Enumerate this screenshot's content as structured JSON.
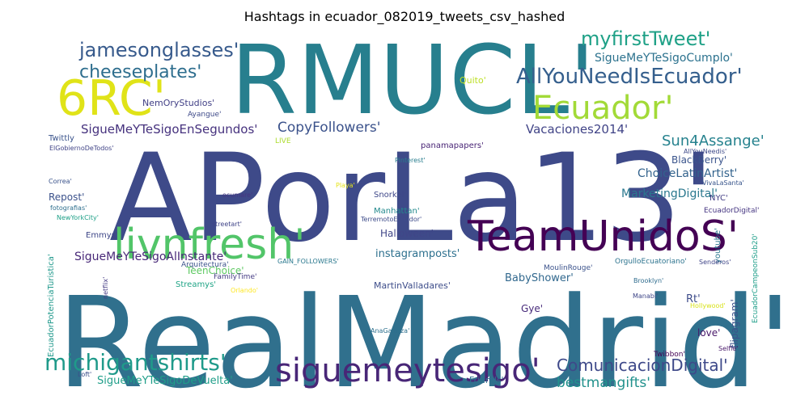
{
  "chart_data": {
    "type": "wordcloud",
    "title": "Hashtags in ecuador_082019_tweets_csv_hashed",
    "palette": "viridis",
    "background": "#ffffff",
    "words": [
      {
        "text": "RealMadrid'",
        "weight": 100,
        "color": "#30708d"
      },
      {
        "text": "APorLa13'",
        "weight": 97,
        "color": "#3e4a89"
      },
      {
        "text": "RMUCL'",
        "weight": 82,
        "color": "#277f8e"
      },
      {
        "text": "TeamUnidoS'",
        "weight": 44,
        "color": "#440154"
      },
      {
        "text": "livnfresh'",
        "weight": 40,
        "color": "#52c569"
      },
      {
        "text": "6RC'",
        "weight": 42,
        "color": "#e0e318"
      },
      {
        "text": "siguemeytesigo'",
        "weight": 30,
        "color": "#482677"
      },
      {
        "text": "Ecuador'",
        "weight": 30,
        "color": "#a2da37"
      },
      {
        "text": "AllYouNeedIsEcuador'",
        "weight": 23,
        "color": "#355f8d"
      },
      {
        "text": "michigantshirts'",
        "weight": 21,
        "color": "#1f9a8a"
      },
      {
        "text": "jamesonglasses'",
        "weight": 20,
        "color": "#375a8c"
      },
      {
        "text": "myfirstTweet'",
        "weight": 20,
        "color": "#1fa187"
      },
      {
        "text": "ComunicacionDigital'",
        "weight": 16,
        "color": "#3e4989"
      },
      {
        "text": "cheeseplates'",
        "weight": 16,
        "color": "#2e6e8e"
      },
      {
        "text": "CopyFollowers'",
        "weight": 14,
        "color": "#3b528b"
      },
      {
        "text": "Sun4Assange'",
        "weight": 14,
        "color": "#26828e"
      },
      {
        "text": "Vacaciones2014'",
        "weight": 13,
        "color": "#414487"
      },
      {
        "text": "SigueMeYTeSigoEnSegundos'",
        "weight": 13,
        "color": "#46327e"
      },
      {
        "text": "SigueMeYTeSigoCumplo'",
        "weight": 12,
        "color": "#2c728e"
      },
      {
        "text": "bestmangifts'",
        "weight": 12,
        "color": "#21918c"
      },
      {
        "text": "SigueMeYTeSigoAlInstante'",
        "weight": 11,
        "color": "#482878"
      },
      {
        "text": "ChoiceLatinArtist'",
        "weight": 11,
        "color": "#33638d"
      },
      {
        "text": "MarketingDigital'",
        "weight": 11,
        "color": "#2a788e"
      },
      {
        "text": "SigueMeYTeSigoDeVuelta'",
        "weight": 10,
        "color": "#1f9e89"
      },
      {
        "text": "instagramposts'",
        "weight": 10,
        "color": "#2d708e"
      },
      {
        "text": "BlackBerry'",
        "weight": 9,
        "color": "#3a548c"
      },
      {
        "text": "Halloween'",
        "weight": 9,
        "color": "#404688"
      },
      {
        "text": "Repost'",
        "weight": 9,
        "color": "#3b518b"
      },
      {
        "text": "TeenChoice'",
        "weight": 9,
        "color": "#5ec962"
      },
      {
        "text": "BabyShower'",
        "weight": 9,
        "color": "#31688e"
      },
      {
        "text": "MartinValladares'",
        "weight": 8,
        "color": "#3d4d8a"
      },
      {
        "text": "Quito'",
        "weight": 8,
        "color": "#bddf26"
      },
      {
        "text": "NemOryStudios'",
        "weight": 7,
        "color": "#424086"
      },
      {
        "text": "youtube'",
        "weight": 7,
        "color": "#2a768e"
      },
      {
        "text": "Rt'",
        "weight": 8,
        "color": "#3e4c8a"
      },
      {
        "text": "Gye'",
        "weight": 7,
        "color": "#472a7a"
      },
      {
        "text": "love'",
        "weight": 7,
        "color": "#48186a"
      },
      {
        "text": "flipagram'",
        "weight": 6,
        "color": "#3b528b"
      },
      {
        "text": "Streamys'",
        "weight": 6,
        "color": "#20a486"
      },
      {
        "text": "Twittly",
        "weight": 6,
        "color": "#3a538b"
      },
      {
        "text": "Emmys'",
        "weight": 6,
        "color": "#3f4788"
      },
      {
        "text": "Friends'",
        "weight": 6,
        "color": "#2d708e"
      },
      {
        "text": "NYC'",
        "weight": 6,
        "color": "#433e85"
      },
      {
        "text": "Manhattan'",
        "weight": 5,
        "color": "#238a8d"
      },
      {
        "text": "Snorkel'",
        "weight": 5,
        "color": "#3f4889"
      },
      {
        "text": "FamilyTime'",
        "weight": 5,
        "color": "#443a83"
      },
      {
        "text": "EcuadorPotenciaTuristica'",
        "weight": 5,
        "color": "#1f988b"
      },
      {
        "text": "EcuadorCampeonSub20'",
        "weight": 5,
        "color": "#1f9e89"
      },
      {
        "text": "MoulinRouge'",
        "weight": 5,
        "color": "#3b528b"
      },
      {
        "text": "panamapapers'",
        "weight": 5,
        "color": "#482475"
      },
      {
        "text": "Arquitectura'",
        "weight": 5,
        "color": "#3b528b"
      },
      {
        "text": "Ayangue'",
        "weight": 5,
        "color": "#3e4a89"
      },
      {
        "text": "EcuadorDigital'",
        "weight": 5,
        "color": "#453581"
      },
      {
        "text": "OrgulloEcuatoriano'",
        "weight": 5,
        "color": "#2c738e"
      },
      {
        "text": "AnaGalarza'",
        "weight": 4,
        "color": "#2d708e"
      },
      {
        "text": "Selfie'",
        "weight": 4,
        "color": "#48186a"
      },
      {
        "text": "Twibbon'",
        "weight": 4,
        "color": "#440154"
      },
      {
        "text": "LIVE",
        "weight": 4,
        "color": "#addc30"
      },
      {
        "text": "Playa'",
        "weight": 4,
        "color": "#e5e419"
      },
      {
        "text": "Orlando'",
        "weight": 4,
        "color": "#fde725"
      },
      {
        "text": "Pinterest'",
        "weight": 4,
        "color": "#287d8e"
      },
      {
        "text": "Brooklyn'",
        "weight": 4,
        "color": "#2f6c8e"
      },
      {
        "text": "GAIN_FOLLOWERS'",
        "weight": 4,
        "color": "#2a788e"
      },
      {
        "text": "TerremotoEcuador'",
        "weight": 4,
        "color": "#3e4c8a"
      },
      {
        "text": "Senderos'",
        "weight": 4,
        "color": "#404588"
      },
      {
        "text": "Hollywood'",
        "weight": 4,
        "color": "#d8e219"
      },
      {
        "text": "Manabi'",
        "weight": 4,
        "color": "#3f4788"
      },
      {
        "text": "ocumare'",
        "weight": 4,
        "color": "#453581"
      },
      {
        "text": "streetart'",
        "weight": 4,
        "color": "#404588"
      },
      {
        "text": "netflix'",
        "weight": 4,
        "color": "#443b84"
      },
      {
        "text": "Loft'",
        "weight": 4,
        "color": "#3c4f8a"
      },
      {
        "text": "AllYouNeedis'",
        "weight": 4,
        "color": "#3e4a89"
      },
      {
        "text": "VivaLaSanta'",
        "weight": 4,
        "color": "#39568c"
      },
      {
        "text": "ElGobiernoDeTodos'",
        "weight": 4,
        "color": "#414487"
      },
      {
        "text": "NewYorkCity'",
        "weight": 4,
        "color": "#1fa088"
      },
      {
        "text": "Correa'",
        "weight": 4,
        "color": "#3a538b"
      },
      {
        "text": "fotografias'",
        "weight": 4,
        "color": "#2e6f8e"
      }
    ]
  }
}
